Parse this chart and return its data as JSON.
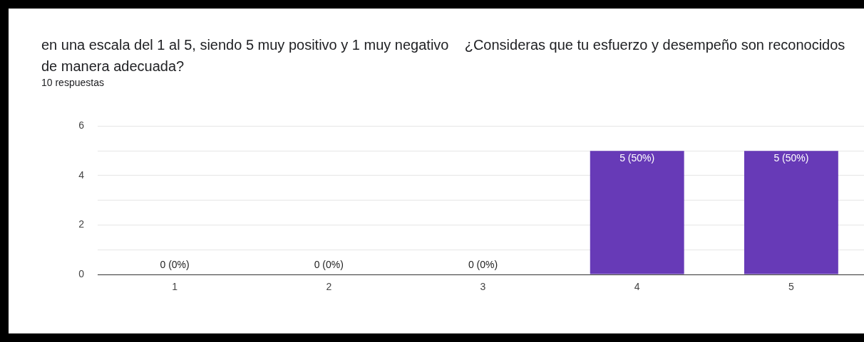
{
  "chart_data": {
    "type": "bar",
    "title": "en una escala del 1 al 5, siendo 5 muy positivo y 1 muy negativo    ¿Consideras que tu esfuerzo y desempeño son reconocidos de manera adecuada?",
    "subtitle": "10 respuestas",
    "categories": [
      "1",
      "2",
      "3",
      "4",
      "5"
    ],
    "values": [
      0,
      0,
      0,
      5,
      5
    ],
    "value_labels": [
      "0 (0%)",
      "0 (0%)",
      "0 (0%)",
      "5 (50%)",
      "5 (50%)"
    ],
    "color": "#673ab7",
    "ylim": [
      0,
      6
    ],
    "yticks": [
      0,
      {
        "value": 1,
        "label": null
      },
      2,
      {
        "value": 3,
        "label": null
      },
      4,
      {
        "value": 5,
        "label": null
      },
      6
    ],
    "grid": "y",
    "legend": false
  }
}
